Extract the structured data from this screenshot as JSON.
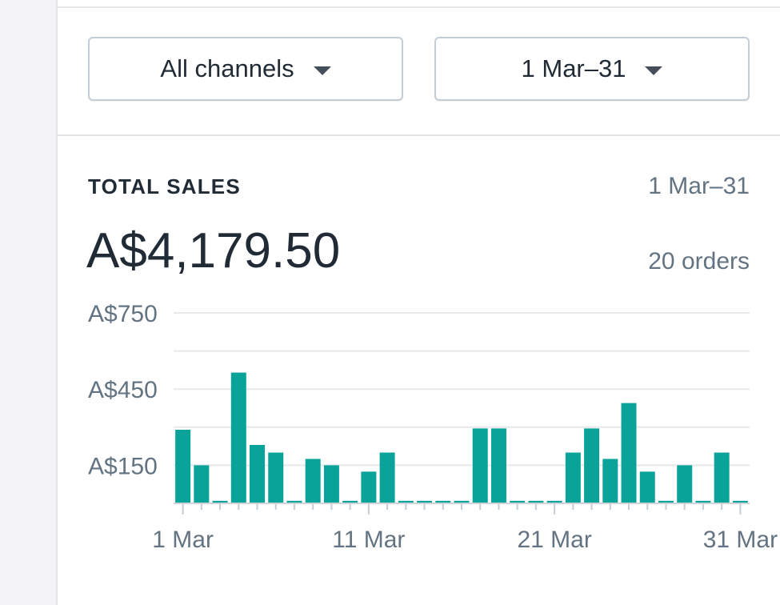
{
  "filters": {
    "channel_label": "All channels",
    "date_label": "1 Mar–31"
  },
  "card": {
    "title": "TOTAL SALES",
    "range": "1 Mar–31",
    "total": "A$4,179.50",
    "orders": "20 orders"
  },
  "chart_data": {
    "type": "bar",
    "title": "",
    "xlabel": "",
    "ylabel": "",
    "ylim": [
      0,
      750
    ],
    "y_ticks": [
      150,
      450,
      750
    ],
    "y_tick_labels": [
      "A$150",
      "A$450",
      "A$750"
    ],
    "grid": true,
    "legend": "none",
    "x_tick_labels": [
      "1 Mar",
      "11 Mar",
      "21 Mar",
      "31 Mar"
    ],
    "x_tick_days": [
      1,
      11,
      21,
      31
    ],
    "categories": [
      1,
      2,
      3,
      4,
      5,
      6,
      7,
      8,
      9,
      10,
      11,
      12,
      13,
      14,
      15,
      16,
      17,
      18,
      19,
      20,
      21,
      22,
      23,
      24,
      25,
      26,
      27,
      28,
      29,
      30,
      31
    ],
    "values": [
      290,
      150,
      10,
      515,
      230,
      200,
      10,
      175,
      150,
      10,
      125,
      200,
      10,
      10,
      10,
      10,
      295,
      295,
      10,
      10,
      10,
      200,
      295,
      175,
      395,
      125,
      10,
      150,
      10,
      200,
      10
    ],
    "bar_color": "#0aa39a"
  }
}
